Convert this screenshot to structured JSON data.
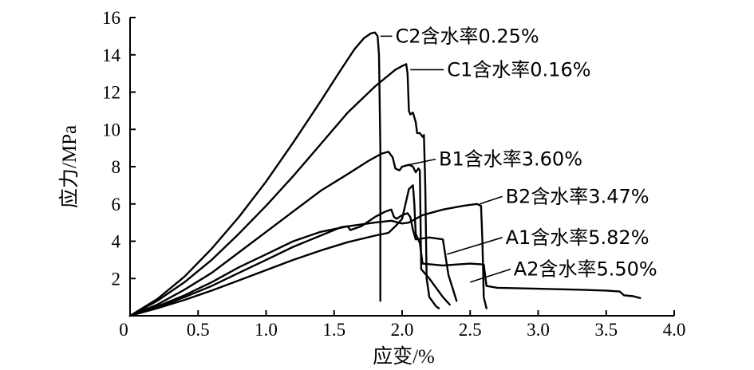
{
  "chart_data": {
    "type": "line",
    "xlabel": "应变/%",
    "ylabel": "应力/MPa",
    "xlim": [
      0,
      4.0
    ],
    "ylim": [
      0,
      16
    ],
    "xticks": [
      "0",
      "0.5",
      "1.0",
      "1.5",
      "2.0",
      "2.5",
      "3.0",
      "3.5",
      "4.0"
    ],
    "yticks": [
      "0",
      "2",
      "4",
      "6",
      "8",
      "10",
      "12",
      "14",
      "16"
    ],
    "grid": false,
    "series": [
      {
        "name": "C2含水率0.25%",
        "anchor": [
          1.95,
          15.0
        ],
        "tip": [
          1.84,
          15.0
        ],
        "points": [
          [
            0,
            0
          ],
          [
            0.2,
            0.9
          ],
          [
            0.4,
            2.1
          ],
          [
            0.6,
            3.6
          ],
          [
            0.8,
            5.3
          ],
          [
            1.0,
            7.2
          ],
          [
            1.2,
            9.3
          ],
          [
            1.4,
            11.5
          ],
          [
            1.55,
            13.2
          ],
          [
            1.65,
            14.3
          ],
          [
            1.72,
            14.9
          ],
          [
            1.77,
            15.15
          ],
          [
            1.8,
            15.2
          ],
          [
            1.82,
            15.0
          ],
          [
            1.83,
            14.0
          ],
          [
            1.84,
            9.0
          ],
          [
            1.84,
            0.8
          ]
        ]
      },
      {
        "name": "C1含水率0.16%",
        "anchor": [
          2.33,
          13.2
        ],
        "tip": [
          2.06,
          13.2
        ],
        "points": [
          [
            0,
            0
          ],
          [
            0.2,
            0.8
          ],
          [
            0.4,
            1.8
          ],
          [
            0.6,
            3.0
          ],
          [
            0.8,
            4.4
          ],
          [
            1.0,
            5.9
          ],
          [
            1.2,
            7.5
          ],
          [
            1.4,
            9.2
          ],
          [
            1.6,
            10.9
          ],
          [
            1.8,
            12.3
          ],
          [
            1.95,
            13.2
          ],
          [
            2.0,
            13.4
          ],
          [
            2.03,
            13.5
          ],
          [
            2.04,
            13.0
          ],
          [
            2.05,
            11.0
          ],
          [
            2.06,
            10.8
          ],
          [
            2.08,
            10.9
          ],
          [
            2.1,
            10.4
          ],
          [
            2.11,
            9.8
          ],
          [
            2.13,
            9.8
          ],
          [
            2.15,
            9.6
          ],
          [
            2.16,
            9.7
          ],
          [
            2.17,
            7.0
          ],
          [
            2.18,
            2.0
          ],
          [
            2.2,
            1.0
          ],
          [
            2.25,
            0.5
          ],
          [
            2.27,
            0.4
          ]
        ]
      },
      {
        "name": "B1含水率3.60%",
        "anchor": [
          2.27,
          8.4
        ],
        "tip": [
          2.05,
          8.1
        ],
        "points": [
          [
            0,
            0
          ],
          [
            0.2,
            0.6
          ],
          [
            0.4,
            1.4
          ],
          [
            0.6,
            2.3
          ],
          [
            0.8,
            3.4
          ],
          [
            1.0,
            4.5
          ],
          [
            1.2,
            5.6
          ],
          [
            1.4,
            6.7
          ],
          [
            1.6,
            7.6
          ],
          [
            1.75,
            8.3
          ],
          [
            1.85,
            8.7
          ],
          [
            1.9,
            8.8
          ],
          [
            1.93,
            8.5
          ],
          [
            1.95,
            7.9
          ],
          [
            1.98,
            7.8
          ],
          [
            2.0,
            8.0
          ],
          [
            2.05,
            8.1
          ],
          [
            2.08,
            8.0
          ],
          [
            2.1,
            7.7
          ],
          [
            2.12,
            7.9
          ],
          [
            2.13,
            7.8
          ],
          [
            2.14,
            2.5
          ],
          [
            2.2,
            2.0
          ],
          [
            2.3,
            1.0
          ],
          [
            2.35,
            0.6
          ]
        ]
      },
      {
        "name": "B2含水率3.47%",
        "anchor": [
          2.76,
          6.4
        ],
        "tip": [
          2.57,
          6.0
        ],
        "points": [
          [
            0,
            0
          ],
          [
            0.2,
            0.5
          ],
          [
            0.4,
            1.1
          ],
          [
            0.6,
            1.8
          ],
          [
            0.8,
            2.6
          ],
          [
            1.0,
            3.3
          ],
          [
            1.2,
            4.0
          ],
          [
            1.4,
            4.5
          ],
          [
            1.6,
            4.8
          ],
          [
            1.8,
            5.0
          ],
          [
            1.92,
            5.1
          ],
          [
            2.0,
            4.95
          ],
          [
            2.05,
            5.0
          ],
          [
            2.15,
            5.4
          ],
          [
            2.3,
            5.7
          ],
          [
            2.45,
            5.9
          ],
          [
            2.55,
            6.0
          ],
          [
            2.58,
            5.9
          ],
          [
            2.59,
            4.0
          ],
          [
            2.6,
            1.0
          ],
          [
            2.62,
            0.4
          ]
        ]
      },
      {
        "name": "A1含水率5.82%",
        "anchor": [
          2.76,
          4.2
        ],
        "tip": [
          2.33,
          3.3
        ],
        "points": [
          [
            0,
            0
          ],
          [
            0.2,
            0.45
          ],
          [
            0.4,
            1.0
          ],
          [
            0.6,
            1.6
          ],
          [
            0.8,
            2.3
          ],
          [
            1.0,
            3.0
          ],
          [
            1.2,
            3.7
          ],
          [
            1.4,
            4.3
          ],
          [
            1.55,
            4.75
          ],
          [
            1.6,
            4.8
          ],
          [
            1.62,
            4.6
          ],
          [
            1.7,
            4.8
          ],
          [
            1.8,
            5.3
          ],
          [
            1.88,
            5.6
          ],
          [
            1.92,
            5.7
          ],
          [
            1.94,
            5.3
          ],
          [
            1.96,
            5.2
          ],
          [
            2.0,
            5.4
          ],
          [
            2.04,
            5.5
          ],
          [
            2.06,
            5.3
          ],
          [
            2.08,
            4.6
          ],
          [
            2.1,
            4.1
          ],
          [
            2.2,
            4.2
          ],
          [
            2.3,
            4.1
          ],
          [
            2.34,
            2.2
          ],
          [
            2.37,
            1.5
          ],
          [
            2.4,
            0.8
          ]
        ]
      },
      {
        "name": "A2含水率5.50%",
        "anchor": [
          2.82,
          2.5
        ],
        "tip": [
          2.5,
          1.8
        ],
        "points": [
          [
            0,
            0
          ],
          [
            0.2,
            0.4
          ],
          [
            0.4,
            0.85
          ],
          [
            0.6,
            1.35
          ],
          [
            0.8,
            1.9
          ],
          [
            1.0,
            2.45
          ],
          [
            1.2,
            3.0
          ],
          [
            1.4,
            3.5
          ],
          [
            1.6,
            3.95
          ],
          [
            1.8,
            4.3
          ],
          [
            1.9,
            4.45
          ],
          [
            1.95,
            4.8
          ],
          [
            2.0,
            5.2
          ],
          [
            2.05,
            6.8
          ],
          [
            2.08,
            7.0
          ],
          [
            2.09,
            6.0
          ],
          [
            2.1,
            4.4
          ],
          [
            2.13,
            3.9
          ],
          [
            2.15,
            2.8
          ],
          [
            2.3,
            2.7
          ],
          [
            2.4,
            2.75
          ],
          [
            2.5,
            2.8
          ],
          [
            2.6,
            2.75
          ],
          [
            2.62,
            1.6
          ],
          [
            2.7,
            1.5
          ],
          [
            3.0,
            1.45
          ],
          [
            3.3,
            1.4
          ],
          [
            3.5,
            1.35
          ],
          [
            3.6,
            1.3
          ],
          [
            3.63,
            1.1
          ],
          [
            3.7,
            1.05
          ],
          [
            3.75,
            0.95
          ]
        ]
      }
    ]
  }
}
